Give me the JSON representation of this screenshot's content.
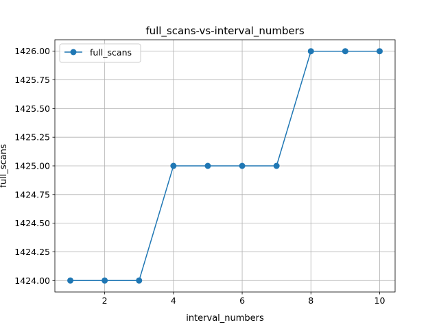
{
  "chart_data": {
    "type": "line",
    "title": "full_scans-vs-interval_numbers",
    "xlabel": "interval_numbers",
    "ylabel": "full_scans",
    "x": [
      1,
      2,
      3,
      4,
      5,
      6,
      7,
      8,
      9,
      10
    ],
    "series": [
      {
        "name": "full_scans",
        "values": [
          1424.0,
          1424.0,
          1424.0,
          1425.0,
          1425.0,
          1425.0,
          1425.0,
          1426.0,
          1426.0,
          1426.0
        ]
      }
    ],
    "xlim": [
      0.55,
      10.45
    ],
    "ylim": [
      1423.9,
      1426.1
    ],
    "xticks": [
      2,
      4,
      6,
      8,
      10
    ],
    "yticks": [
      1424.0,
      1424.25,
      1424.5,
      1424.75,
      1425.0,
      1425.25,
      1425.5,
      1425.75,
      1426.0
    ],
    "xtick_labels": [
      "2",
      "4",
      "6",
      "8",
      "10"
    ],
    "ytick_labels": [
      "1424.00",
      "1424.25",
      "1424.50",
      "1424.75",
      "1425.00",
      "1425.25",
      "1425.50",
      "1425.75",
      "1426.00"
    ],
    "grid": true,
    "legend_position": "top-left",
    "colors": {
      "series": "#1f77b4",
      "grid": "#b0b0b0",
      "axes": "#000000"
    }
  }
}
